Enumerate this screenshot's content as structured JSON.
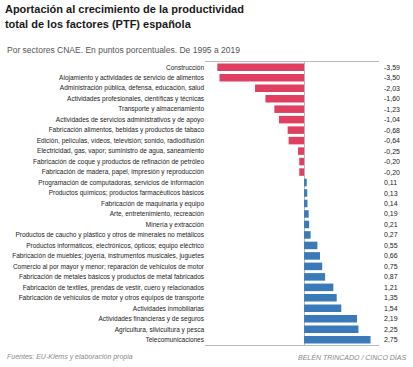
{
  "chart_data": {
    "type": "bar",
    "orientation": "horizontal",
    "title": "Aportación al crecimiento de la productividad total de los factores (PTF) española",
    "subtitle": "Por sectores CNAE. En puntos porcentuales. De 1995 a 2019",
    "annotations": [
      "Fuentes: EU-Klems y elaboración propia",
      "BELÉN TRINCADO / CINCO DÍAS"
    ],
    "categories": [
      "Telecomunicaciones",
      "Agricultura, silvicultura y pesca",
      "Actividades financieras y de seguros",
      "Actividades inmobiliarias",
      "Fabricación de vehículos de motor y otros equipos de transporte",
      "Fabricación de textiles, prendas de vestir, cuero y relacionados",
      "Fabricación de metales básicos y productos de metal fabricados",
      "Comercio al por mayor y menor; reparación de vehículos de motor",
      "Fabricación de muebles; joyería, instrumentos musicales, juguetes",
      "Productos informáticos, electrónicos, ópticos; equipo eléctrico",
      "Productos de caucho y plástico y otros de minerales no metálicos",
      "Minería y extracción",
      "Arte, entretenimiento, recreación",
      "Fabricación de maquinaria y equipo",
      "Productos químicos; productos farmacéuticos básicos",
      "Programación de computadoras, servicios de información",
      "Fabricación de madera, papel, impresión y reproducción",
      "Fabricación de coque y productos de refinación de petróleo",
      "Electricidad, gas, vapor; suministro de agua, saneamiento",
      "Edición, películas, vídeos, televisión; sonido, radiodifusión",
      "Fabricación alimentos, bebidas y productos de tabaco",
      "Actividades de servicios administrativos y de apoyo",
      "Transporte y almacenamiento",
      "Actividades profesionales, científicas y técnicas",
      "Administración pública, defensa, educación, salud",
      "Alojamiento y actividades de servicio de alimentos",
      "Construcción"
    ],
    "values": [
      2.75,
      2.25,
      2.19,
      1.54,
      1.35,
      1.21,
      0.87,
      0.75,
      0.66,
      0.55,
      0.27,
      0.21,
      0.19,
      0.14,
      0.13,
      0.11,
      -0.2,
      -0.2,
      -0.25,
      -0.64,
      -0.68,
      -1.04,
      -1.23,
      -1.6,
      -2.03,
      -3.5,
      -3.59
    ],
    "value_labels": [
      "2,75",
      "2,25",
      "2,19",
      "1,54",
      "1,35",
      "1,21",
      "0,87",
      "0,75",
      "0,66",
      "0,55",
      "0,27",
      "0,21",
      "0,19",
      "0,14",
      "0,13",
      "0,11",
      "-0,20",
      "-0,20",
      "-0,25",
      "-0,64",
      "-0,68",
      "-1,04",
      "-1,23",
      "-1,60",
      "-2,03",
      "-3,50",
      "-3,59"
    ],
    "data_labels": true,
    "colors": [
      "#3a7ab8",
      "#3a7ab8",
      "#3a7ab8",
      "#3a7ab8",
      "#3a7ab8",
      "#3a7ab8",
      "#3a7ab8",
      "#3a7ab8",
      "#3a7ab8",
      "#3a7ab8",
      "#3a7ab8",
      "#3a7ab8",
      "#3a7ab8",
      "#3a7ab8",
      "#3a7ab8",
      "#3a7ab8",
      "#e04060",
      "#e04060",
      "#e04060",
      "#e04060",
      "#e04060",
      "#e04060",
      "#e04060",
      "#e04060",
      "#e04060",
      "#e04060",
      "#e04060"
    ],
    "xlim": [
      -4.1,
      3.1
    ],
    "grid": false,
    "tick_labels": "y"
  }
}
